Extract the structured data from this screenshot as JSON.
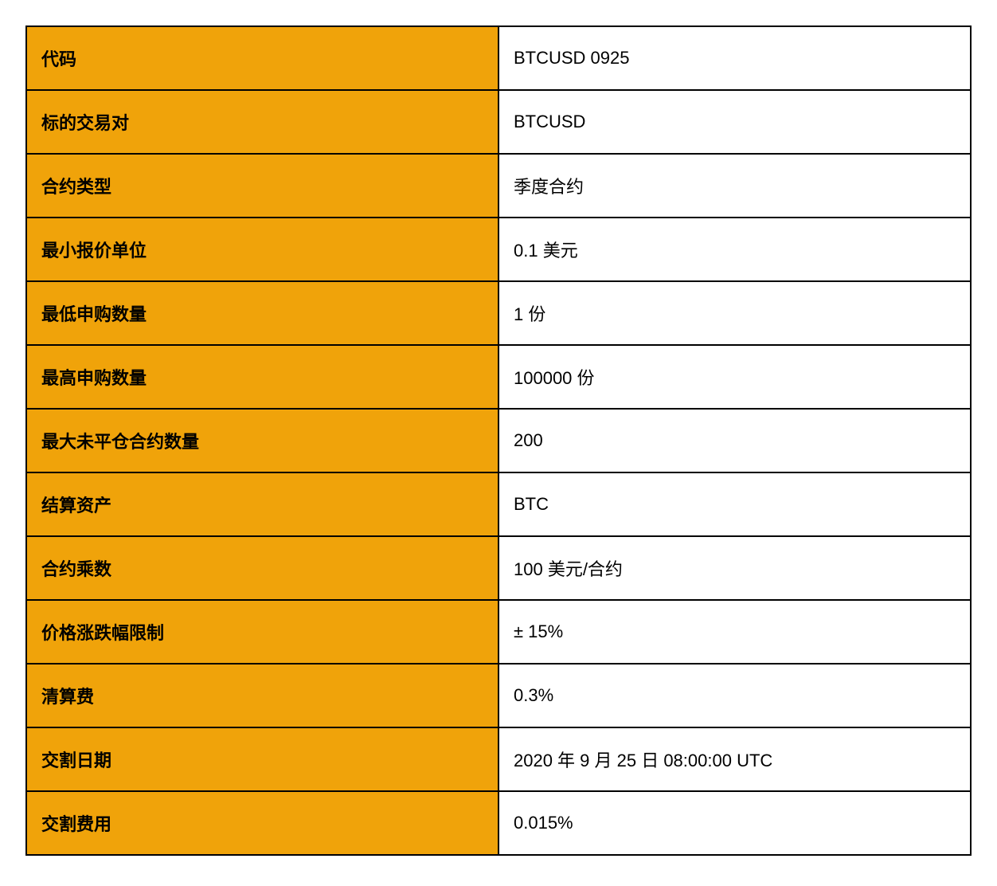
{
  "table": {
    "type": "table",
    "columns": [
      "label",
      "value"
    ],
    "label_bg_color": "#f0a30a",
    "value_bg_color": "#ffffff",
    "border_color": "#000000",
    "text_color": "#000000",
    "font_size": 22,
    "label_font_weight": 700,
    "value_font_weight": 400,
    "cell_padding": "20px 18px",
    "rows": [
      {
        "label": "代码",
        "value": "BTCUSD 0925"
      },
      {
        "label": "标的交易对",
        "value": "BTCUSD"
      },
      {
        "label": "合约类型",
        "value": "季度合约"
      },
      {
        "label": "最小报价单位",
        "value": "0.1 美元"
      },
      {
        "label": "最低申购数量",
        "value": "1 份"
      },
      {
        "label": "最高申购数量",
        "value": "100000 份"
      },
      {
        "label": "最大未平仓合约数量",
        "value": "200"
      },
      {
        "label": "结算资产",
        "value": "BTC"
      },
      {
        "label": "合约乘数",
        "value": "100 美元/合约"
      },
      {
        "label": "价格涨跌幅限制",
        "value": "± 15%"
      },
      {
        "label": "清算费",
        "value": "0.3%"
      },
      {
        "label": "交割日期",
        "value": "2020 年 9 月 25 日 08:00:00 UTC"
      },
      {
        "label": "交割费用",
        "value": "0.015%"
      }
    ]
  }
}
